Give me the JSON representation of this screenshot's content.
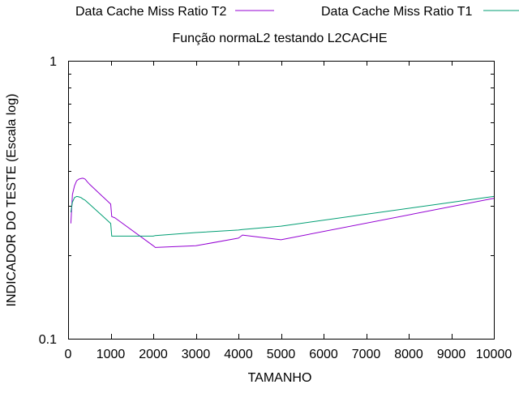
{
  "chart_data": {
    "type": "line",
    "title": "Função normaL2 testando L2CACHE",
    "xlabel": "TAMANHO",
    "ylabel": "INDICADOR DO TESTE (Escala log)",
    "xlim": [
      0,
      10000
    ],
    "ylim": [
      0.1,
      1
    ],
    "yscale": "log",
    "grid": false,
    "legend_position": "top",
    "x_ticks": [
      0,
      1000,
      2000,
      3000,
      4000,
      5000,
      6000,
      7000,
      8000,
      9000,
      10000
    ],
    "x_tick_labels": [
      "0",
      "1000",
      "2000",
      "3000",
      "4000",
      "5000",
      "6000",
      "7000",
      "8000",
      "9000",
      "10000"
    ],
    "y_ticks": [
      0.1,
      1
    ],
    "y_tick_labels": [
      "0.1",
      "1"
    ],
    "series": [
      {
        "name": "Data Cache Miss Ratio T2",
        "color": "#9400d3",
        "x": [
          64,
          100,
          150,
          200,
          250,
          300,
          350,
          400,
          450,
          500,
          1000,
          1024,
          1100,
          2000,
          2048,
          3000,
          4000,
          4096,
          5000,
          10000
        ],
        "y": [
          0.26,
          0.33,
          0.355,
          0.37,
          0.375,
          0.377,
          0.378,
          0.375,
          0.367,
          0.36,
          0.305,
          0.275,
          0.272,
          0.216,
          0.213,
          0.216,
          0.23,
          0.236,
          0.227,
          0.32
        ]
      },
      {
        "name": "Data Cache Miss Ratio T1",
        "color": "#009e73",
        "x": [
          64,
          100,
          150,
          200,
          250,
          300,
          350,
          400,
          450,
          500,
          1000,
          1024,
          1100,
          2000,
          2048,
          3000,
          4000,
          4096,
          5000,
          10000
        ],
        "y": [
          0.285,
          0.31,
          0.322,
          0.325,
          0.324,
          0.322,
          0.318,
          0.315,
          0.31,
          0.305,
          0.26,
          0.234,
          0.234,
          0.234,
          0.235,
          0.241,
          0.246,
          0.247,
          0.254,
          0.325
        ]
      }
    ]
  }
}
